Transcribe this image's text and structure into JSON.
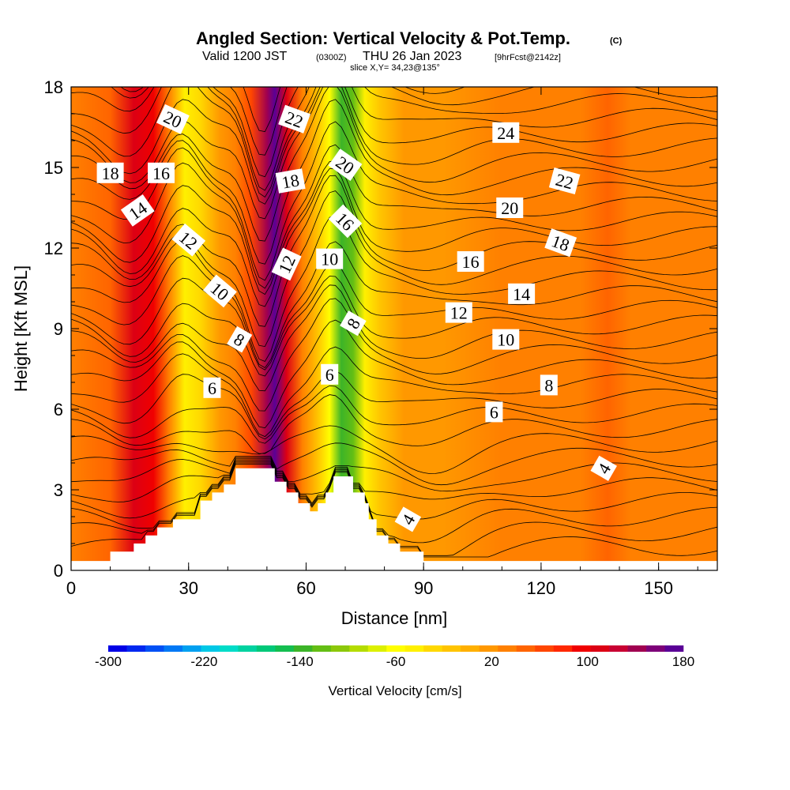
{
  "header": {
    "title": "Angled Section: Vertical Velocity & Pot.Temp.",
    "title_mark": "(C)",
    "valid_prefix": "Valid 1200 JST",
    "valid_utc": "(0300Z)",
    "valid_date": "THU 26 Jan 2023",
    "forecast": "[9hrFcst@2142z]",
    "slice": "slice X,Y= 34,23@135°"
  },
  "chart_data": {
    "type": "heatmap",
    "xlabel": "Distance [nm]",
    "ylabel": "Height [Kft MSL]",
    "xlim": [
      0,
      165
    ],
    "ylim": [
      0,
      18
    ],
    "x_ticks": [
      0,
      30,
      60,
      90,
      120,
      150
    ],
    "y_ticks": [
      0,
      3,
      6,
      9,
      12,
      15,
      18
    ],
    "colorbar": {
      "label": "Vertical Velocity [cm/s]",
      "min": -300,
      "max": 180,
      "tick_labels": [
        "-300",
        "-220",
        "-140",
        "-60",
        "20",
        "100",
        "180"
      ],
      "colors": [
        "#0000e6",
        "#0028f0",
        "#0050f5",
        "#0078f5",
        "#00a0f0",
        "#00c8e6",
        "#00dcc8",
        "#00d2a0",
        "#00c878",
        "#14be50",
        "#3cb428",
        "#64be14",
        "#8cc80a",
        "#b4dc00",
        "#dcf000",
        "#ffff00",
        "#fff000",
        "#ffd800",
        "#ffc400",
        "#ffb000",
        "#ff9800",
        "#ff8000",
        "#ff6400",
        "#ff4600",
        "#ff2800",
        "#f00000",
        "#dc0014",
        "#c80032",
        "#a00050",
        "#7d0078",
        "#5a0096"
      ]
    },
    "velocity_columns": [
      {
        "x": 0,
        "value": 30
      },
      {
        "x": 10,
        "value": 45
      },
      {
        "x": 16,
        "value": 110
      },
      {
        "x": 21,
        "value": 100
      },
      {
        "x": 25,
        "value": 40
      },
      {
        "x": 29,
        "value": -40
      },
      {
        "x": 33,
        "value": -30
      },
      {
        "x": 38,
        "value": 10
      },
      {
        "x": 42,
        "value": 30
      },
      {
        "x": 46,
        "value": 60
      },
      {
        "x": 50,
        "value": 140
      },
      {
        "x": 52,
        "value": 175
      },
      {
        "x": 55,
        "value": 110
      },
      {
        "x": 59,
        "value": 40
      },
      {
        "x": 63,
        "value": -20
      },
      {
        "x": 66,
        "value": -60
      },
      {
        "x": 69,
        "value": -140
      },
      {
        "x": 72,
        "value": -120
      },
      {
        "x": 75,
        "value": -50
      },
      {
        "x": 79,
        "value": -10
      },
      {
        "x": 85,
        "value": 15
      },
      {
        "x": 95,
        "value": 25
      },
      {
        "x": 110,
        "value": 30
      },
      {
        "x": 122,
        "value": 28
      },
      {
        "x": 130,
        "value": 38
      },
      {
        "x": 137,
        "value": 55
      },
      {
        "x": 143,
        "value": 30
      },
      {
        "x": 150,
        "value": 35
      },
      {
        "x": 158,
        "value": 40
      },
      {
        "x": 165,
        "value": 35
      }
    ],
    "terrain_steps": [
      {
        "x": 0,
        "h": 0.35
      },
      {
        "x": 10,
        "h": 0.7
      },
      {
        "x": 16,
        "h": 1.0
      },
      {
        "x": 19,
        "h": 1.3
      },
      {
        "x": 22,
        "h": 1.6
      },
      {
        "x": 26,
        "h": 1.9
      },
      {
        "x": 33,
        "h": 2.6
      },
      {
        "x": 36,
        "h": 2.9
      },
      {
        "x": 39,
        "h": 3.2
      },
      {
        "x": 42,
        "h": 3.8
      },
      {
        "x": 52,
        "h": 3.3
      },
      {
        "x": 55,
        "h": 2.9
      },
      {
        "x": 58,
        "h": 2.5
      },
      {
        "x": 61,
        "h": 2.2
      },
      {
        "x": 63,
        "h": 2.5
      },
      {
        "x": 65,
        "h": 2.9
      },
      {
        "x": 67,
        "h": 3.5
      },
      {
        "x": 72,
        "h": 2.9
      },
      {
        "x": 75,
        "h": 2.5
      },
      {
        "x": 76,
        "h": 1.9
      },
      {
        "x": 78,
        "h": 1.3
      },
      {
        "x": 81,
        "h": 1.0
      },
      {
        "x": 84,
        "h": 0.7
      },
      {
        "x": 90,
        "h": 0.35
      },
      {
        "x": 165,
        "h": 0.35
      }
    ],
    "contour_labels": [
      {
        "text": "20",
        "x": 26,
        "y": 16.8,
        "angle": 25
      },
      {
        "text": "22",
        "x": 57,
        "y": 16.8,
        "angle": 20
      },
      {
        "text": "24",
        "x": 111,
        "y": 16.3,
        "angle": 0
      },
      {
        "text": "18",
        "x": 10,
        "y": 14.8,
        "angle": 0
      },
      {
        "text": "16",
        "x": 23,
        "y": 14.8,
        "angle": 0
      },
      {
        "text": "18",
        "x": 56,
        "y": 14.5,
        "angle": -10
      },
      {
        "text": "20",
        "x": 70,
        "y": 15.1,
        "angle": 35
      },
      {
        "text": "22",
        "x": 126,
        "y": 14.5,
        "angle": 15
      },
      {
        "text": "14",
        "x": 17,
        "y": 13.4,
        "angle": -35
      },
      {
        "text": "16",
        "x": 70,
        "y": 13.0,
        "angle": 45
      },
      {
        "text": "20",
        "x": 112,
        "y": 13.5,
        "angle": 0
      },
      {
        "text": "12",
        "x": 30,
        "y": 12.3,
        "angle": 40
      },
      {
        "text": "18",
        "x": 125,
        "y": 12.2,
        "angle": 20
      },
      {
        "text": "12",
        "x": 55,
        "y": 11.4,
        "angle": -65
      },
      {
        "text": "10",
        "x": 66,
        "y": 11.6,
        "angle": 0
      },
      {
        "text": "16",
        "x": 102,
        "y": 11.5,
        "angle": 0
      },
      {
        "text": "10",
        "x": 38,
        "y": 10.4,
        "angle": 40
      },
      {
        "text": "14",
        "x": 115,
        "y": 10.3,
        "angle": 0
      },
      {
        "text": "12",
        "x": 99,
        "y": 9.6,
        "angle": 0
      },
      {
        "text": "8",
        "x": 43,
        "y": 8.6,
        "angle": 30
      },
      {
        "text": "8",
        "x": 72,
        "y": 9.2,
        "angle": -60
      },
      {
        "text": "10",
        "x": 111,
        "y": 8.6,
        "angle": 0
      },
      {
        "text": "6",
        "x": 66,
        "y": 7.3,
        "angle": 0
      },
      {
        "text": "6",
        "x": 36,
        "y": 6.8,
        "angle": 0
      },
      {
        "text": "8",
        "x": 122,
        "y": 6.9,
        "angle": 0
      },
      {
        "text": "6",
        "x": 108,
        "y": 5.9,
        "angle": 0
      },
      {
        "text": "4",
        "x": 136,
        "y": 3.8,
        "angle": -60
      },
      {
        "text": "4",
        "x": 86,
        "y": 1.9,
        "angle": -60
      }
    ]
  }
}
